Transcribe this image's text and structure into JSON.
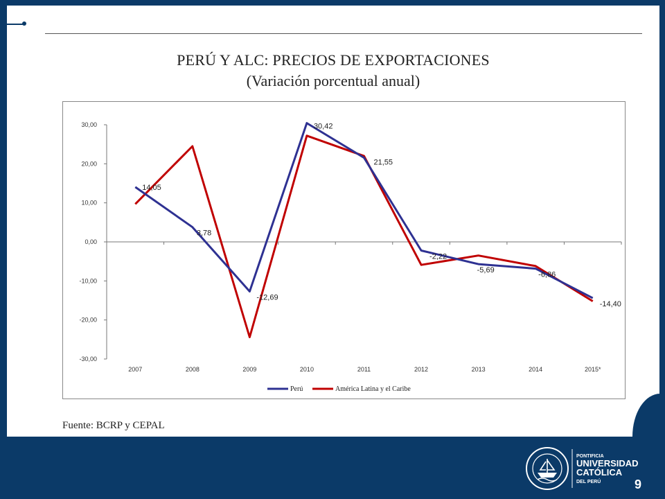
{
  "slide": {
    "title": "PERÚ Y ALC: PRECIOS DE EXPORTACIONES",
    "subtitle": "(Variación porcentual anual)",
    "source": "Fuente: BCRP y CEPAL",
    "page_number": "9"
  },
  "logo": {
    "line1": "PONTIFICIA",
    "line2": "UNIVERSIDAD",
    "line3": "CATÓLICA",
    "line4": "DEL PERÚ",
    "seal_text": "ET LUX IN TENEBRIS LUCET"
  },
  "colors": {
    "background": "#0b3a68",
    "peru_series": "#2e3192",
    "alc_series": "#c00000"
  },
  "chart_data": {
    "type": "line",
    "categories": [
      "2007",
      "2008",
      "2009",
      "2010",
      "2011",
      "2012",
      "2013",
      "2014",
      "2015*"
    ],
    "series": [
      {
        "name": "Perú",
        "values": [
          14.05,
          3.78,
          -12.69,
          30.42,
          21.55,
          -2.22,
          -5.69,
          -6.86,
          -14.4
        ],
        "data_labels": [
          "14,05",
          "3,78",
          "-12,69",
          "30,42",
          "21,55",
          "-2,22",
          "-5,69",
          "-6,86",
          "-14,40"
        ]
      },
      {
        "name": "América Latina y el Caribe",
        "values": [
          9.7,
          24.5,
          -24.4,
          27.2,
          22.0,
          -5.9,
          -3.5,
          -6.2,
          -15.2
        ]
      }
    ],
    "yticks": [
      "30,00",
      "20,00",
      "10,00",
      "0,00",
      "-10,00",
      "-20,00",
      "-30,00"
    ],
    "ylim": [
      -30,
      30
    ],
    "grid": false,
    "legend_position": "bottom"
  }
}
